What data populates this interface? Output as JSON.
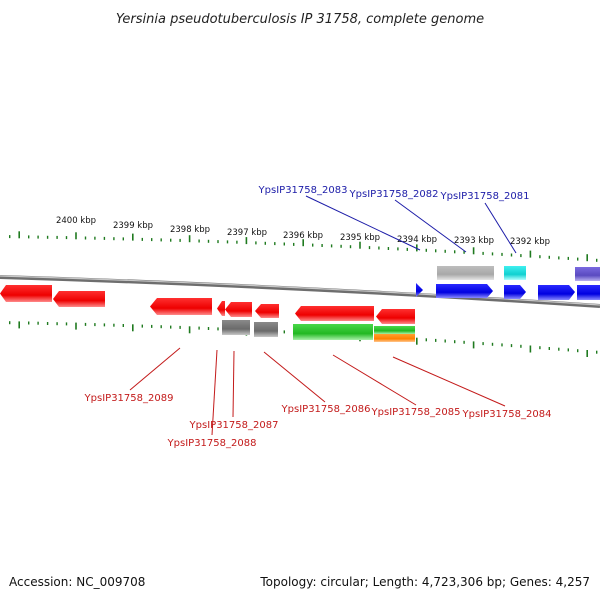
{
  "title": "Yersinia pseudotuberculosis IP 31758, complete genome",
  "kbp_labels": [
    "2400 kbp",
    "2399 kbp",
    "2398 kbp",
    "2397 kbp",
    "2396 kbp",
    "2395 kbp",
    "2394 kbp",
    "2393 kbp",
    "2392 kbp"
  ],
  "top_gene_labels": [
    "YpsIP31758_2083",
    "YpsIP31758_2082",
    "YpsIP31758_2081"
  ],
  "bottom_gene_labels": [
    "YpsIP31758_2089",
    "YpsIP31758_2087",
    "YpsIP31758_2088",
    "YpsIP31758_2086",
    "YpsIP31758_2085",
    "YpsIP31758_2084"
  ],
  "footer": {
    "accession": "Accession: NC_009708",
    "summary": "Topology: circular; Length: 4,723,306 bp; Genes: 4,257"
  },
  "colors": {
    "tick": "#1f7a1f",
    "reverse_gene": "#ff1414",
    "forward_gene": "#1010ff",
    "rna_gene": "#7f7f7f",
    "green_gene": "#33cc33",
    "orange_gene": "#ff8c00",
    "cyan_gene": "#19e0e0",
    "purple_gene": "#6a5acd",
    "backbone": "#8a8a8a",
    "top_leader": "#1c1ca8",
    "bottom_leader": "#c31a1a"
  }
}
